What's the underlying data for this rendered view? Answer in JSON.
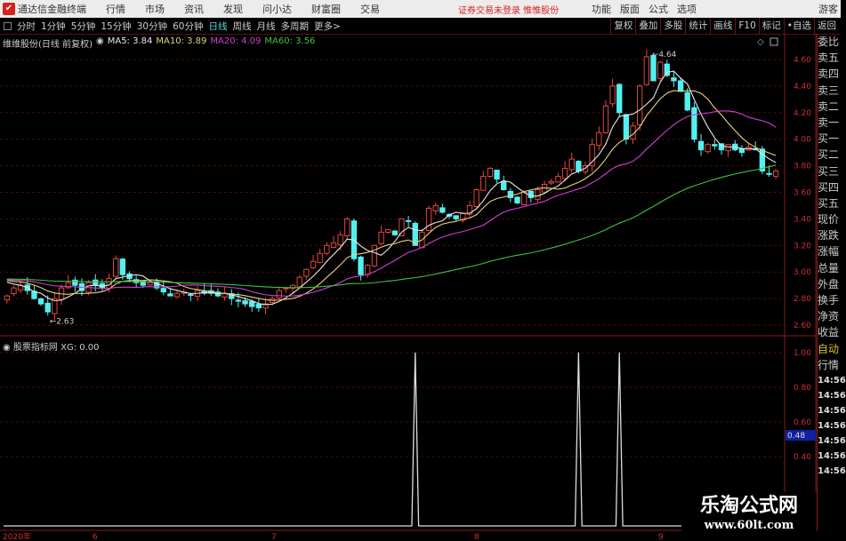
{
  "app": {
    "title": "通达信金融终端",
    "logo_icon": "tdx-logo-icon",
    "menu": [
      "行情",
      "市场",
      "资讯",
      "发现",
      "问小达",
      "财富圈",
      "交易"
    ],
    "login_status": "证券交易未登录 惟惟股份",
    "right_menu": [
      "功能",
      "版面",
      "公式",
      "选项"
    ],
    "guest": "游客"
  },
  "toolbar": {
    "periods": [
      "分时",
      "1分钟",
      "5分钟",
      "15分钟",
      "30分钟",
      "60分钟",
      "日线",
      "周线",
      "月线",
      "多周期",
      "更多>"
    ],
    "active": "日线",
    "buttons": [
      "复权",
      "叠加",
      "多股",
      "统计",
      "画线",
      "F10",
      "标记",
      "•自选",
      "返回"
    ]
  },
  "main_info": {
    "stock": "维维股份(日线 前复权)",
    "ma5": "MA5: 3.84",
    "ma10": "MA10: 3.89",
    "ma20": "MA20: 4.09",
    "ma60": "MA60: 3.56"
  },
  "indicator_info": {
    "name": "股票指标网",
    "xg": "XG: 0.00",
    "highlight_value": "0.48"
  },
  "right_panel": {
    "labels": [
      "委比",
      "卖五",
      "卖四",
      "卖三",
      "卖二",
      "卖一",
      "买一",
      "买二",
      "买三",
      "买四",
      "买五",
      "现价",
      "涨跌",
      "涨幅",
      "总量",
      "外盘",
      "换手",
      "净资",
      "收益"
    ],
    "auto": "自动",
    "quote": "行情",
    "ticks": [
      "14:56",
      "14:56",
      "14:56",
      "14:56",
      "14:56",
      "14:56",
      "14:56"
    ]
  },
  "watermark": {
    "name": "乐淘公式网",
    "url": "www.60lt.com"
  },
  "colors": {
    "up": "#e0483e",
    "down": "#54f0f0",
    "ma5": "#e8e8e8",
    "ma10": "#e8d080",
    "ma20": "#d040d0",
    "ma60": "#40c040",
    "grid": "#4a0c0c",
    "axis_text": "#d03030"
  },
  "chart_data": {
    "type": "candlestick",
    "price_axis": {
      "ticks": [
        "4.60",
        "4.40",
        "4.20",
        "4.00",
        "3.80",
        "3.60",
        "3.40",
        "3.20",
        "3.00",
        "2.80",
        "2.60"
      ],
      "range": [
        2.55,
        4.72
      ]
    },
    "date_axis": [
      "2020年",
      "6",
      "7",
      "8",
      "9"
    ],
    "closes": [
      2.82,
      2.88,
      2.9,
      2.86,
      2.8,
      2.76,
      2.7,
      2.8,
      2.88,
      2.92,
      2.9,
      2.86,
      2.92,
      2.9,
      2.88,
      2.95,
      3.1,
      2.98,
      2.95,
      2.92,
      2.9,
      2.92,
      2.88,
      2.85,
      2.82,
      2.84,
      2.85,
      2.83,
      2.86,
      2.84,
      2.84,
      2.82,
      2.84,
      2.8,
      2.78,
      2.76,
      2.74,
      2.73,
      2.76,
      2.8,
      2.86,
      2.88,
      2.9,
      2.96,
      3.02,
      3.08,
      3.14,
      3.2,
      3.22,
      3.28,
      3.4,
      3.1,
      2.98,
      3.05,
      3.2,
      3.3,
      3.32,
      3.28,
      3.4,
      3.38,
      3.2,
      3.3,
      3.48,
      3.5,
      3.45,
      3.42,
      3.4,
      3.44,
      3.5,
      3.62,
      3.72,
      3.78,
      3.7,
      3.62,
      3.56,
      3.52,
      3.6,
      3.56,
      3.62,
      3.66,
      3.68,
      3.72,
      3.78,
      3.85,
      3.76,
      3.8,
      3.96,
      4.05,
      4.25,
      4.4,
      4.2,
      4.0,
      4.1,
      4.4,
      4.62,
      4.44,
      4.58,
      4.48,
      4.44,
      4.36,
      4.22,
      4.0,
      3.92,
      3.96,
      3.95,
      3.92,
      3.96,
      3.92,
      3.9,
      3.94,
      3.92,
      3.76,
      3.74,
      3.76
    ],
    "annotations": {
      "high": "4.64",
      "low": "2.63"
    },
    "indicator": {
      "name": "XG",
      "ticks": [
        "1.00",
        "0.80",
        "0.60",
        "0.40"
      ],
      "range": [
        0,
        1
      ],
      "signal_bars": [
        60,
        84,
        90
      ]
    }
  }
}
